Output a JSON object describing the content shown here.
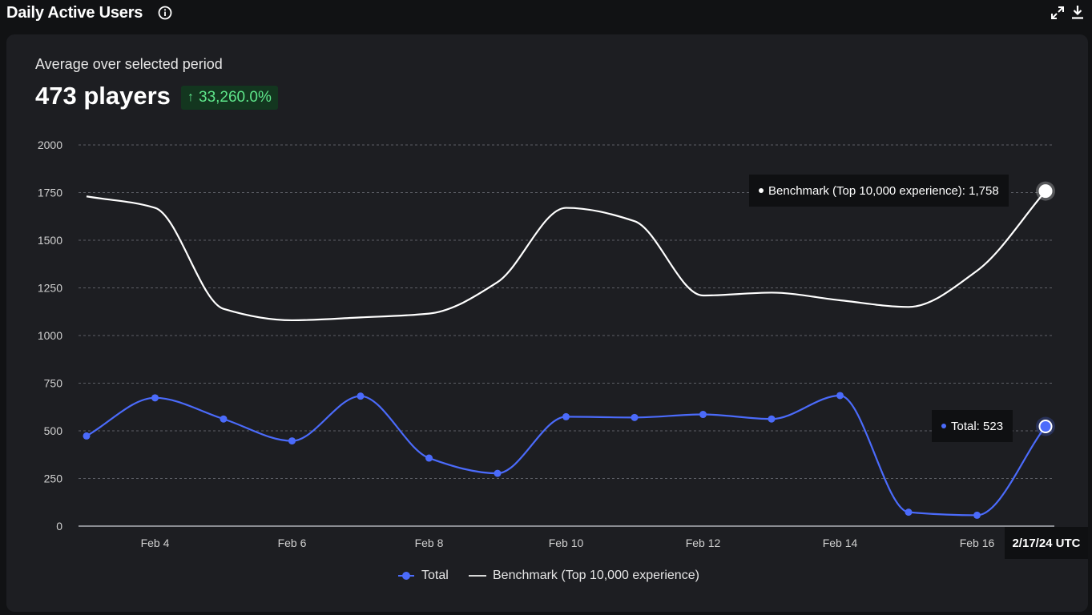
{
  "header": {
    "title": "Daily Active Users",
    "info_icon": "info-icon",
    "expand_icon": "expand-icon",
    "download_icon": "download-icon"
  },
  "summary": {
    "subtitle": "Average over selected period",
    "headline": "473 players",
    "change_arrow": "↑",
    "change": "33,260.0%"
  },
  "tooltips": {
    "benchmark": "Benchmark (Top 10,000 experience): 1,758",
    "total": "Total: 523",
    "date": "2/17/24 UTC"
  },
  "colors": {
    "total": "#4b6bfb",
    "benchmark": "#ffffff",
    "positive": "#5ee58a",
    "grid": "#6b6d73"
  },
  "chart_data": {
    "type": "line",
    "x": [
      "Feb 3",
      "Feb 4",
      "Feb 5",
      "Feb 6",
      "Feb 7",
      "Feb 8",
      "Feb 9",
      "Feb 10",
      "Feb 11",
      "Feb 12",
      "Feb 13",
      "Feb 14",
      "Feb 15",
      "Feb 16",
      "Feb 17"
    ],
    "x_tick_labels": [
      "Feb 4",
      "Feb 6",
      "Feb 8",
      "Feb 10",
      "Feb 12",
      "Feb 14",
      "Feb 16"
    ],
    "y_ticks": [
      0,
      250,
      500,
      750,
      1000,
      1250,
      1500,
      1750,
      2000
    ],
    "ylim": [
      0,
      2000
    ],
    "grid": true,
    "legend_position": "bottom-center",
    "series": [
      {
        "name": "Total",
        "values": [
          473,
          673,
          562,
          447,
          682,
          357,
          277,
          574,
          570,
          586,
          562,
          685,
          73,
          57,
          523
        ]
      },
      {
        "name": "Benchmark (Top 10,000 experience)",
        "values": [
          1730,
          1670,
          1140,
          1080,
          1095,
          1115,
          1280,
          1670,
          1600,
          1210,
          1225,
          1185,
          1150,
          1340,
          1758
        ]
      }
    ]
  }
}
